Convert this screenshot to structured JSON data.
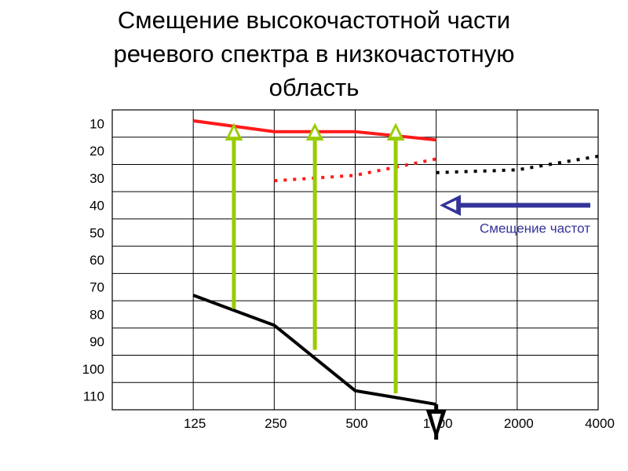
{
  "title_lines": [
    "Смещение высокочастотной части",
    "речевого спектра в низкочастотную",
    "область"
  ],
  "annotation": "Смещение частот",
  "colors": {
    "grid": "#000000",
    "red": "#ff1a1a",
    "black": "#000000",
    "green": "#99cc00",
    "blue": "#333399",
    "annotation_text": "#333399"
  },
  "chart_data": {
    "type": "line",
    "x_tick_labels": [
      "125",
      "250",
      "500",
      "1000",
      "2000",
      "4000"
    ],
    "y_tick_labels": [
      "10",
      "20",
      "30",
      "40",
      "50",
      "60",
      "70",
      "80",
      "90",
      "100",
      "110"
    ],
    "ylim": [
      5,
      115
    ],
    "y_inverted": true,
    "grid": true,
    "series": [
      {
        "style": "solid",
        "color": "red",
        "x": [
          125,
          250,
          500,
          1000
        ],
        "y": [
          9,
          13,
          13,
          16
        ]
      },
      {
        "style": "dotted",
        "color": "red",
        "x": [
          250,
          500,
          1000
        ],
        "y": [
          31,
          29,
          23
        ]
      },
      {
        "style": "dotted",
        "color": "black",
        "x": [
          1000,
          2000,
          4000
        ],
        "y": [
          28,
          27,
          22
        ]
      },
      {
        "style": "solid",
        "color": "black",
        "x": [
          125,
          250,
          500,
          1000
        ],
        "y": [
          73,
          84,
          108,
          113
        ]
      }
    ],
    "shift_arrows": [
      {
        "x": 177,
        "from_y": 78,
        "to_y": 13
      },
      {
        "x": 354,
        "from_y": 93,
        "to_y": 13
      },
      {
        "x": 707,
        "from_y": 109,
        "to_y": 13
      }
    ],
    "frequency_shift_arrow": {
      "from_x": 4000,
      "to_x": 1000,
      "y": 40
    },
    "drop_marker": {
      "x": 1000,
      "from_y": 113
    }
  }
}
